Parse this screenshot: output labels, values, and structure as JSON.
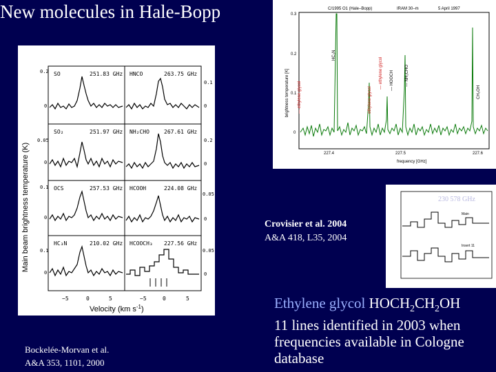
{
  "slide": {
    "title": "New molecules in Hale-Bopp"
  },
  "left_figure": {
    "ylabel": "Main beam brightness temperature (K)",
    "xlabel": "Velocity (km s",
    "xlabel_sup": "-1",
    "xlabel_end": ")",
    "xticks": [
      "−5",
      "0",
      "5",
      "−5",
      "0",
      "5"
    ],
    "panels": [
      {
        "label_left": "SO",
        "freq_left": "251.83 GHz",
        "label_right": "HNCO",
        "freq_right": "263.75 GHz",
        "yticks_left": [
          "0.2",
          "0"
        ],
        "yticks_right": [
          "0.1",
          "0"
        ]
      },
      {
        "label_left": "SO₂",
        "freq_left": "251.97 GHz",
        "label_right": "NH₂CHO",
        "freq_right": "267.61 GHz",
        "yticks_left": [
          "0.05",
          "0"
        ],
        "yticks_right": [
          "0.2",
          "0"
        ]
      },
      {
        "label_left": "OCS",
        "freq_left": "257.53 GHz",
        "label_right": "HCOOH",
        "freq_right": "224.08 GHz",
        "yticks_left": [
          "0.1",
          "0"
        ],
        "yticks_right": [
          "0.05",
          "0"
        ]
      },
      {
        "label_left": "HC₃N",
        "freq_left": "210.02 GHz",
        "label_right": "HCOOCH₃",
        "freq_right": "227.56 GHz",
        "yticks_left": [
          "0.1",
          "0"
        ],
        "yticks_right": [
          "0.05",
          "0"
        ]
      }
    ]
  },
  "left_reference": {
    "line1": "Bockelée-Morvan et al.",
    "line2": "A&A 353, 1101, 2000"
  },
  "top_right_figure": {
    "header_left": "C/1995 O1 (Hale–Bopp)",
    "header_mid": "IRAM 30–m",
    "header_right": "5 April 1997",
    "ylabel": "brightness temperature [K]",
    "xlabel": "frequency [GHz]",
    "yticks": [
      "0.3",
      "0.2",
      "0.1",
      "0"
    ],
    "xticks": [
      "227.4",
      "227.5",
      "227.6"
    ],
    "line_labels": [
      "HC₃N",
      "— ethylene glycol",
      "ethylene glycol",
      "— ethylene glycol",
      "— HOOCH",
      "— NH₂CHO",
      "CH₃OH"
    ],
    "colors": {
      "spectrum": "#0a7a0a",
      "ethylene_glycol": "#d02020",
      "frame": "#000000"
    }
  },
  "mid_right_figure": {
    "overlay_text": "230 578 GHz",
    "label_top": "Main",
    "label_bottom": "Insert 11"
  },
  "middle_reference": {
    "line1": "Crovisier et al. 2004",
    "line2": "A&A 418, L35, 2004"
  },
  "caption": {
    "part1_colored": "Ethylene glycol",
    "part1_rest_a": " HOCH",
    "sub1": "2",
    "part1_rest_b": "CH",
    "sub2": "2",
    "part1_rest_c": "OH",
    "line2": "11 lines identified in 2003 when",
    "line3": "frequencies available in Cologne",
    "line4": "database",
    "color_highlight": "#9ab0ff"
  }
}
